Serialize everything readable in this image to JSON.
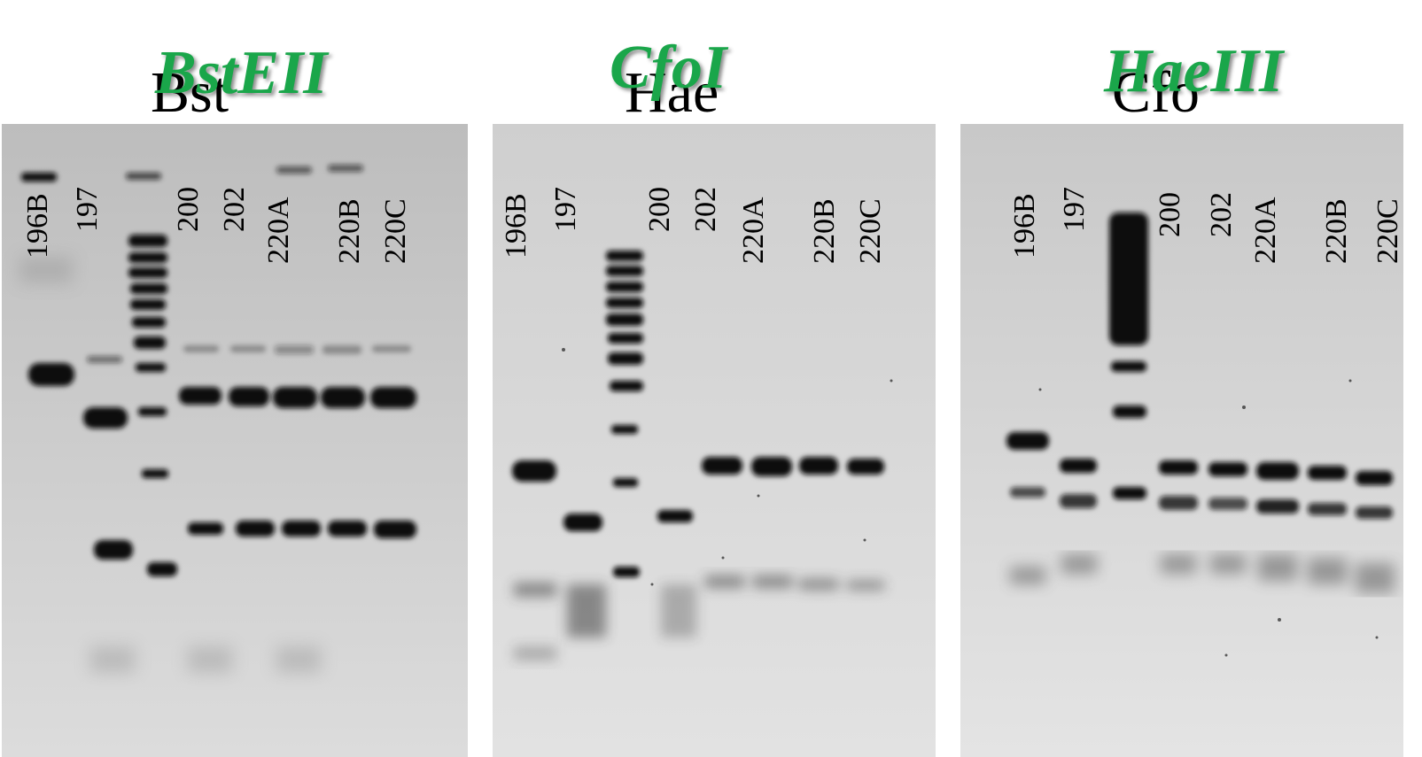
{
  "panels": [
    {
      "title": "Bst",
      "enzyme": "BstEII",
      "lanes": [
        "196B",
        "197",
        "200",
        "202",
        "220A",
        "220B",
        "220C"
      ]
    },
    {
      "title": "Hae",
      "enzyme": "CfoI",
      "lanes": [
        "196B",
        "197",
        "200",
        "202",
        "220A",
        "220B",
        "220C"
      ]
    },
    {
      "title": "Cfo",
      "enzyme": "HaeIII",
      "lanes": [
        "196B",
        "197",
        "200",
        "202",
        "220A",
        "220B",
        "220C"
      ]
    }
  ],
  "colors": {
    "gel_background": "#d4d4d4",
    "band": "#111111",
    "enzyme_label": "#1aa64a",
    "background": "#ffffff"
  }
}
